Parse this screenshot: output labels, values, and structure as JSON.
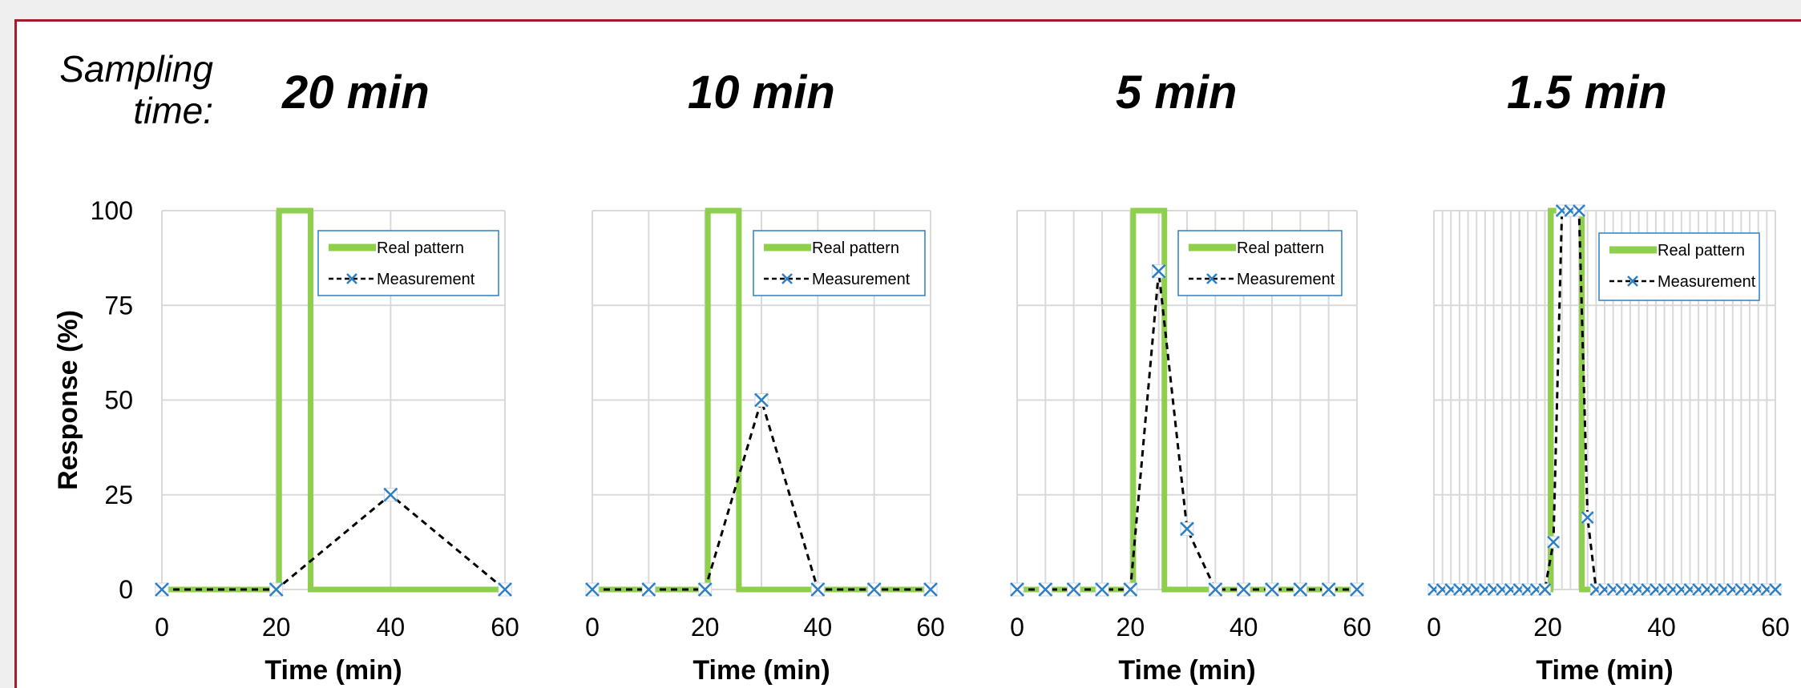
{
  "sampling_label": {
    "line1": "Sampling",
    "line2": "time:"
  },
  "headings": [
    "20 min",
    "10 min",
    "5 min",
    "1.5 min"
  ],
  "colors": {
    "real": "#8ecf4d",
    "measurement": "#000000",
    "marker": "#2e7ec4",
    "grid": "#d9d9d9",
    "frame": "#a01d2b",
    "legend_border": "#2e7ec4"
  },
  "shared": {
    "ylabel": "Response (%)",
    "xlabel": "Time (min)",
    "yticks": [
      0,
      25,
      50,
      75,
      100
    ],
    "xticks": [
      0,
      20,
      40,
      60
    ],
    "legend": [
      "Real pattern",
      "Measurement"
    ]
  },
  "chart_data": [
    {
      "type": "line",
      "title": "20 min",
      "xlabel": "Time (min)",
      "ylabel": "Response (%)",
      "xlim": [
        0,
        60
      ],
      "ylim": [
        0,
        100
      ],
      "grid": true,
      "legend_position": "top-right",
      "series": [
        {
          "name": "Real pattern",
          "x": [
            0,
            20.5,
            20.5,
            26,
            26,
            60
          ],
          "y": [
            0,
            0,
            100,
            100,
            0,
            0
          ]
        },
        {
          "name": "Measurement",
          "x": [
            0,
            20,
            40,
            60
          ],
          "y": [
            0,
            0,
            25,
            0
          ]
        }
      ]
    },
    {
      "type": "line",
      "title": "10 min",
      "xlabel": "Time (min)",
      "ylabel": "",
      "xlim": [
        0,
        60
      ],
      "ylim": [
        0,
        100
      ],
      "grid": true,
      "legend_position": "top-right",
      "series": [
        {
          "name": "Real pattern",
          "x": [
            0,
            20.5,
            20.5,
            26,
            26,
            60
          ],
          "y": [
            0,
            0,
            100,
            100,
            0,
            0
          ]
        },
        {
          "name": "Measurement",
          "x": [
            0,
            10,
            20,
            30,
            40,
            50,
            60
          ],
          "y": [
            0,
            0,
            0,
            50,
            0,
            0,
            0
          ]
        }
      ]
    },
    {
      "type": "line",
      "title": "5 min",
      "xlabel": "Time (min)",
      "ylabel": "",
      "xlim": [
        0,
        60
      ],
      "ylim": [
        0,
        100
      ],
      "grid": true,
      "legend_position": "top-right",
      "series": [
        {
          "name": "Real pattern",
          "x": [
            0,
            20.5,
            20.5,
            26,
            26,
            60
          ],
          "y": [
            0,
            0,
            100,
            100,
            0,
            0
          ]
        },
        {
          "name": "Measurement",
          "x": [
            0,
            5,
            10,
            15,
            20,
            25,
            30,
            35,
            40,
            45,
            50,
            55,
            60
          ],
          "y": [
            0,
            0,
            0,
            0,
            0,
            84,
            16,
            0,
            0,
            0,
            0,
            0,
            0
          ]
        }
      ]
    },
    {
      "type": "line",
      "title": "1.5 min",
      "xlabel": "Time (min)",
      "ylabel": "",
      "xlim": [
        0,
        60
      ],
      "ylim": [
        0,
        100
      ],
      "grid": true,
      "legend_position": "top-right",
      "series": [
        {
          "name": "Real pattern",
          "x": [
            0,
            20.5,
            20.5,
            26,
            26,
            60
          ],
          "y": [
            0,
            0,
            100,
            100,
            0,
            0
          ]
        },
        {
          "name": "Measurement",
          "x": [
            0,
            1.5,
            3,
            4.5,
            6,
            7.5,
            9,
            10.5,
            12,
            13.5,
            15,
            16.5,
            18,
            19.5,
            21,
            22.5,
            24,
            25.5,
            27,
            28.5,
            30,
            31.5,
            33,
            34.5,
            36,
            37.5,
            39,
            40.5,
            42,
            43.5,
            45,
            46.5,
            48,
            49.5,
            51,
            52.5,
            54,
            55.5,
            57,
            58.5,
            60
          ],
          "y": [
            0,
            0,
            0,
            0,
            0,
            0,
            0,
            0,
            0,
            0,
            0,
            0,
            0,
            0,
            12.5,
            100,
            100,
            100,
            19,
            0,
            0,
            0,
            0,
            0,
            0,
            0,
            0,
            0,
            0,
            0,
            0,
            0,
            0,
            0,
            0,
            0,
            0,
            0,
            0,
            0,
            0
          ]
        }
      ]
    }
  ]
}
